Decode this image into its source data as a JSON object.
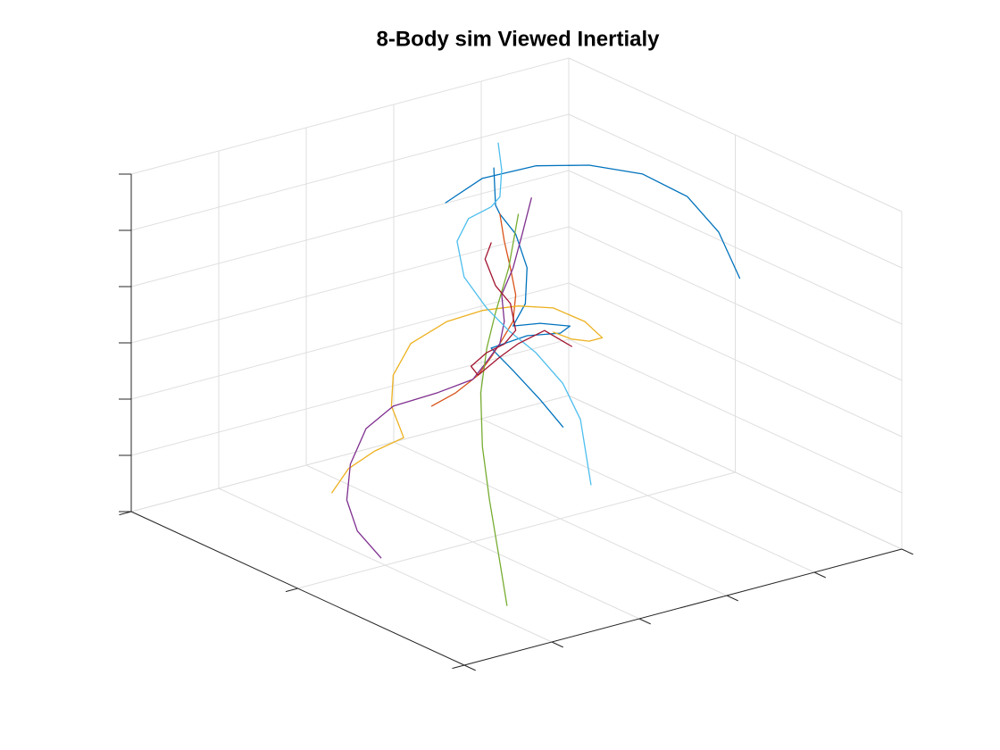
{
  "chart_data": {
    "type": "line3d",
    "title": "8-Body sim Viewed Inertialy",
    "xlim": [
      0,
      5
    ],
    "xticks": [
      0,
      1,
      2,
      3,
      4,
      5
    ],
    "ylim": [
      0,
      2
    ],
    "yticks": [
      0,
      1,
      2
    ],
    "zlim": [
      0,
      6
    ],
    "zticks": [
      0,
      1,
      2,
      3,
      4,
      5,
      6
    ],
    "grid": true,
    "series": [
      {
        "color": "#0072BD",
        "x": [
          1.31,
          1.73,
          2.34,
          2.95,
          3.56,
          4.07,
          4.43,
          4.67
        ],
        "y": [
          1.2,
          1.2,
          1.2,
          1.2,
          1.2,
          1.2,
          1.2,
          1.2
        ],
        "z": [
          6.59,
          6.85,
          6.82,
          6.58,
          6.17,
          5.56,
          4.78,
          3.86
        ]
      },
      {
        "color": "#0072BD",
        "x": [
          1.86,
          1.88,
          1.93,
          2.11,
          2.24,
          2.22,
          2.08,
          2.39,
          2.73,
          2.62,
          2.24,
          1.83,
          2.08,
          2.39,
          2.65
        ],
        "y": [
          1.2,
          1.2,
          1.2,
          1.2,
          1.2,
          1.2,
          1.2,
          1.2,
          1.2,
          1.2,
          1.2,
          1.2,
          1.2,
          1.2,
          1.2
        ],
        "z": [
          6.98,
          6.31,
          6.13,
          5.7,
          5.05,
          4.42,
          4.08,
          4.0,
          3.81,
          3.73,
          3.84,
          3.79,
          3.29,
          2.64,
          2.05
        ]
      },
      {
        "color": "#D95319",
        "x": [
          1.15,
          1.42,
          1.68,
          1.83,
          1.93,
          2.08,
          2.11,
          2.05,
          1.98,
          1.93
        ],
        "y": [
          1.2,
          1.2,
          1.2,
          1.2,
          1.2,
          1.2,
          1.2,
          1.2,
          1.2,
          1.2
        ],
        "z": [
          3.04,
          3.16,
          3.37,
          3.63,
          3.83,
          4.16,
          4.62,
          5.12,
          5.63,
          6.13
        ]
      },
      {
        "color": "#EDB120",
        "x": [
          0.01,
          0.2,
          0.5,
          0.83,
          0.79,
          0.69,
          0.71,
          0.91,
          1.32,
          1.73,
          2.14,
          2.54,
          2.9,
          3.1,
          2.95,
          2.75,
          2.54
        ],
        "y": [
          1.2,
          1.2,
          1.2,
          1.2,
          1.2,
          1.2,
          1.2,
          1.2,
          1.2,
          1.2,
          1.2,
          1.2,
          1.2,
          1.2,
          1.2,
          1.2,
          1.2
        ],
        "z": [
          1.97,
          2.32,
          2.51,
          2.61,
          2.79,
          3.23,
          3.77,
          4.25,
          4.47,
          4.5,
          4.41,
          4.21,
          3.82,
          3.45,
          3.45,
          3.57,
          3.78
        ]
      },
      {
        "color": "#7E2F8E",
        "x": [
          0.57,
          0.3,
          0.18,
          0.22,
          0.4,
          0.71,
          1.22,
          1.62,
          1.78,
          1.93,
          1.98,
          1.95,
          2.08,
          2.19,
          2.29
        ],
        "y": [
          1.2,
          1.2,
          1.2,
          1.2,
          1.2,
          1.2,
          1.2,
          1.2,
          1.2,
          1.2,
          1.2,
          1.2,
          1.2,
          1.2,
          1.2
        ],
        "z": [
          0.58,
          1.17,
          1.77,
          2.39,
          2.95,
          3.22,
          3.25,
          3.32,
          3.57,
          3.83,
          4.2,
          4.69,
          5.11,
          5.7,
          6.27
        ]
      },
      {
        "color": "#77AC30",
        "x": [
          2.14,
          2.03,
          1.88,
          1.78,
          1.71,
          1.73,
          1.81,
          1.93,
          2.01
        ],
        "y": [
          1.2,
          1.2,
          1.2,
          1.2,
          1.2,
          1.2,
          1.2,
          1.2,
          1.2
        ],
        "z": [
          6.04,
          5.13,
          4.4,
          3.81,
          3.04,
          2.08,
          1.1,
          -0.06,
          -0.86
        ]
      },
      {
        "color": "#4DBEEE",
        "x": [
          1.91,
          1.95,
          1.93,
          1.83,
          1.57,
          1.44,
          1.52,
          1.78,
          2.03,
          2.34,
          2.65,
          2.85,
          2.97
        ],
        "y": [
          1.2,
          1.2,
          1.2,
          1.2,
          1.2,
          1.2,
          1.2,
          1.2,
          1.2,
          1.2,
          1.2,
          1.2,
          1.2
        ],
        "z": [
          7.4,
          6.91,
          6.44,
          6.3,
          6.2,
          5.85,
          5.18,
          4.52,
          4.02,
          3.5,
          2.82,
          2.1,
          0.89
        ]
      },
      {
        "color": "#A2142F",
        "x": [
          1.83,
          1.76,
          1.88,
          2.05,
          2.11,
          1.98,
          1.78,
          1.6,
          1.68,
          1.93,
          2.14,
          2.44,
          2.75
        ],
        "y": [
          1.2,
          1.2,
          1.2,
          1.2,
          1.2,
          1.2,
          1.2,
          1.2,
          1.2,
          1.2,
          1.2,
          1.2,
          1.2
        ],
        "z": [
          5.66,
          5.4,
          4.88,
          4.49,
          3.99,
          3.8,
          3.73,
          3.56,
          3.37,
          3.59,
          3.74,
          3.85,
          3.44
        ]
      }
    ]
  }
}
